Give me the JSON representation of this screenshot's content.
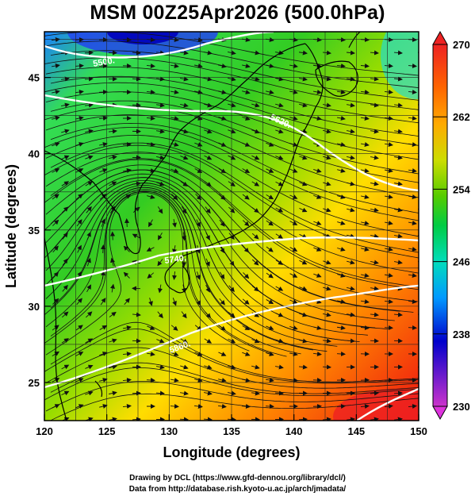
{
  "title": "MSM 00Z25Apr2026 (500.0hPa)",
  "map": {
    "xlabel": "Longitude (degrees)",
    "ylabel": "Latitude  (degrees)",
    "lon_range": [
      120,
      150
    ],
    "lat_range": [
      22.5,
      48
    ],
    "lon_ticks": [
      120,
      125,
      130,
      135,
      140,
      145,
      150
    ],
    "lat_ticks": [
      25,
      30,
      35,
      40,
      45
    ],
    "grid": true,
    "contour_labels": [
      "5500.",
      "5620.",
      "5740.",
      "5860."
    ]
  },
  "colorbar": {
    "min": 230,
    "max": 270,
    "tick_labels": [
      "270",
      "262",
      "254",
      "246",
      "238",
      "230"
    ],
    "colors": [
      "#cc33cc",
      "#0000cc",
      "#0099ff",
      "#00e6cc",
      "#00cc44",
      "#66cc00",
      "#ccdd00",
      "#ffaa00",
      "#ff5500",
      "#ee0000"
    ]
  },
  "credits": {
    "line1": "Drawing by DCL (https://www.gfd-dennou.org/library/dcl/)",
    "line2": "Data from http://database.rish.kyoto-u.ac.jp/arch/jmadata/"
  }
}
